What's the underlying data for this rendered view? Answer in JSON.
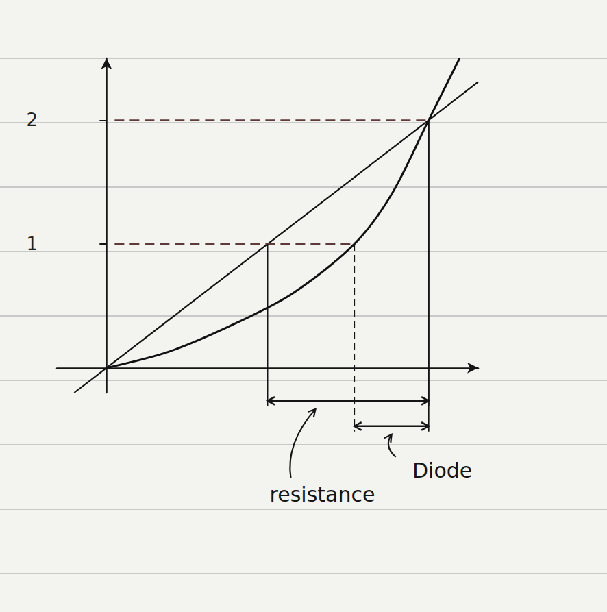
{
  "chart_data": {
    "type": "line",
    "xlim": [
      -0.4,
      3.0
    ],
    "ylim": [
      -0.2,
      2.5
    ],
    "yticks": [
      1,
      2
    ],
    "grid": false,
    "tick_labels": "y",
    "series": [
      {
        "color": "#111111",
        "x": [
          -0.26,
          0,
          1.3,
          2.6,
          3.0
        ],
        "values": [
          -0.2,
          0,
          1,
          2,
          2.31
        ]
      },
      {
        "color": "#111111",
        "x": [
          0,
          0.5,
          1,
          1.5,
          2,
          2.3,
          2.6,
          2.85
        ],
        "values": [
          0,
          0.13,
          0.34,
          0.6,
          1,
          1.4,
          2,
          2.5
        ]
      }
    ],
    "annotations": [
      {
        "text": "resistance",
        "from": [
          1.3,
          1
        ],
        "to": [
          2.6,
          2
        ]
      },
      {
        "text": "Diode",
        "from": [
          2.0,
          1
        ],
        "to": [
          2.6,
          2
        ]
      }
    ]
  }
}
